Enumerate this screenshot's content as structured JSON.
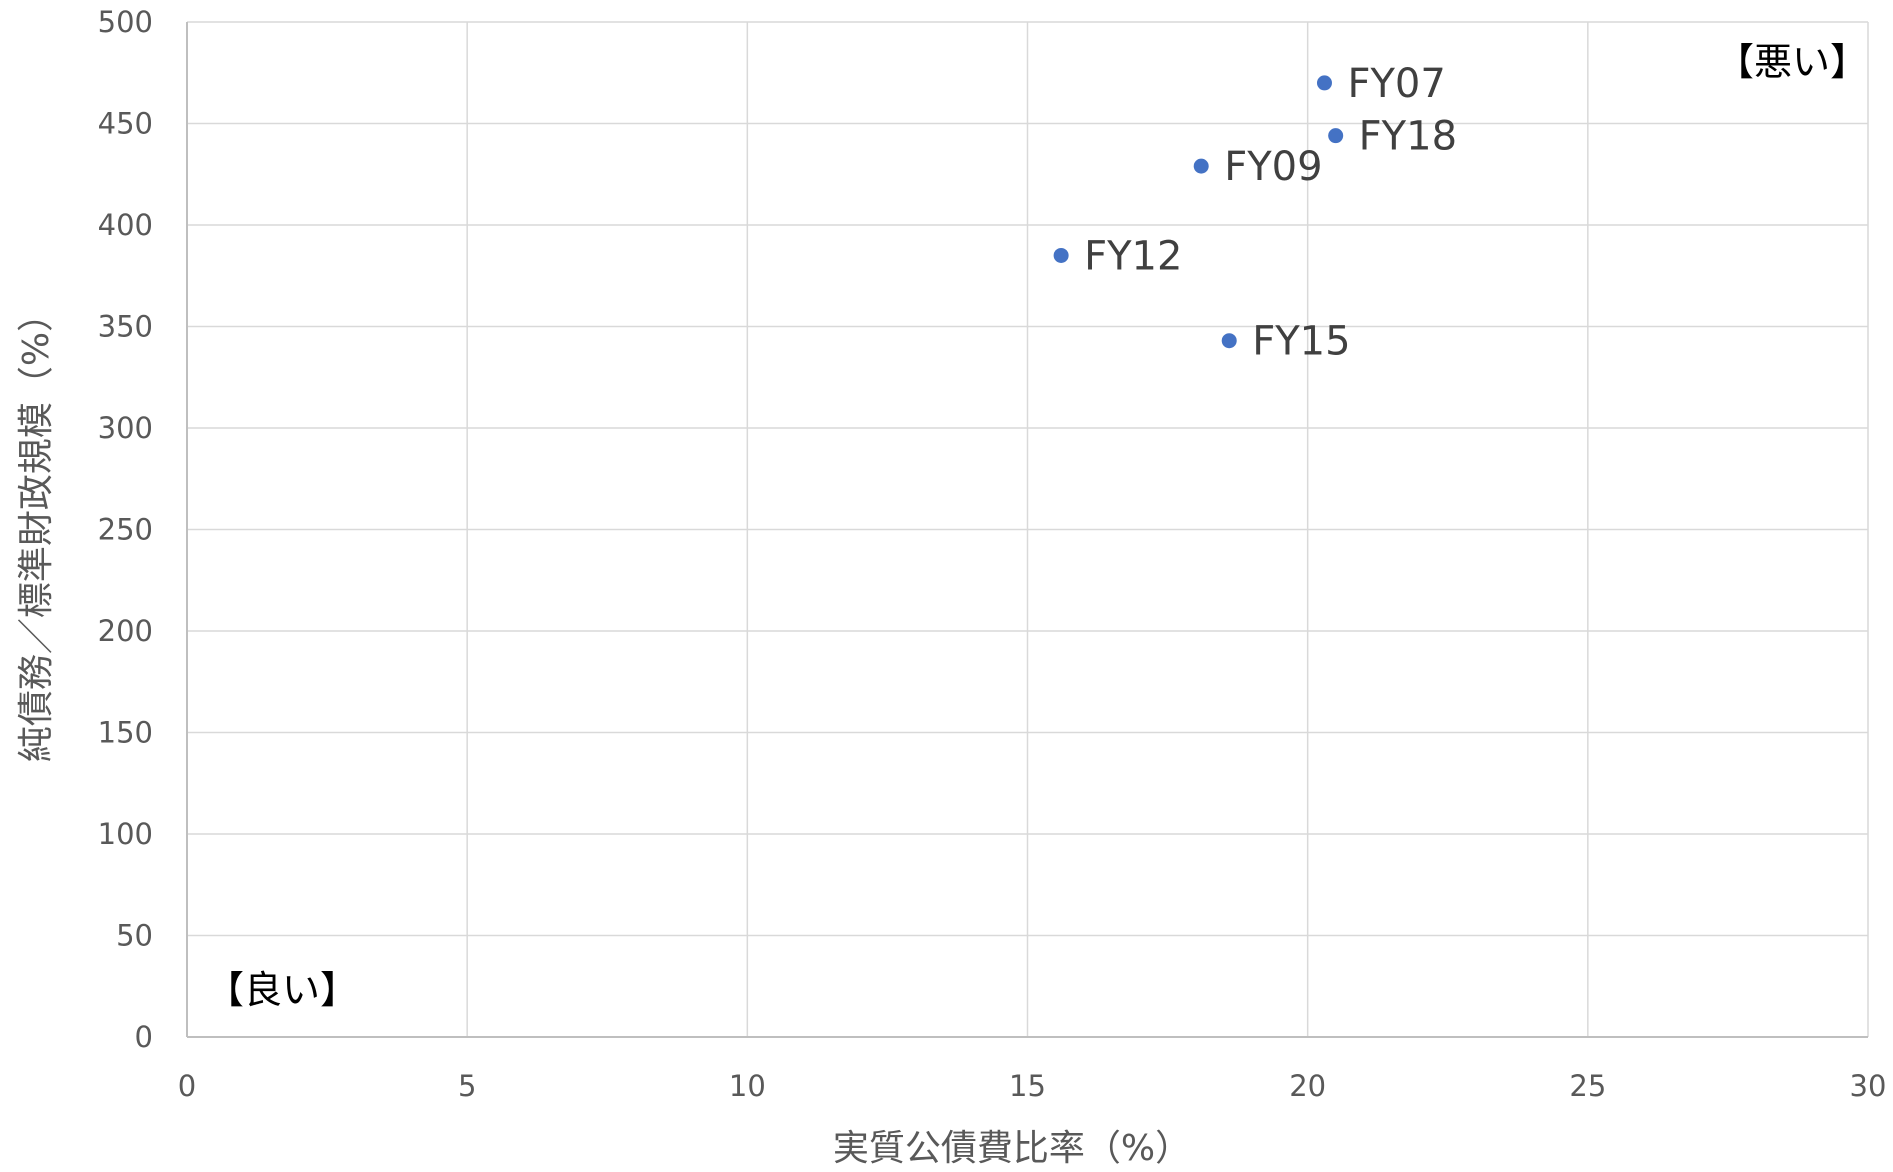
{
  "chart_data": {
    "type": "scatter",
    "xlabel": "実質公債費比率（%）",
    "ylabel": "純債務／標準財政規模（%）",
    "xlim": [
      0,
      30
    ],
    "ylim": [
      0,
      500
    ],
    "x_ticks": [
      0,
      5,
      10,
      15,
      20,
      25,
      30
    ],
    "y_ticks": [
      0,
      50,
      100,
      150,
      200,
      250,
      300,
      350,
      400,
      450,
      500
    ],
    "grid": true,
    "points": [
      {
        "label": "FY07",
        "x": 20.3,
        "y": 470
      },
      {
        "label": "FY18",
        "x": 20.5,
        "y": 444
      },
      {
        "label": "FY09",
        "x": 18.1,
        "y": 429
      },
      {
        "label": "FY12",
        "x": 15.6,
        "y": 385
      },
      {
        "label": "FY15",
        "x": 18.6,
        "y": 343
      }
    ],
    "annotations": {
      "bad": "【悪い】",
      "good": "【良い】"
    },
    "colors": {
      "marker": "#4472c4",
      "grid": "#d9d9d9",
      "axis": "#bfbfbf"
    }
  }
}
